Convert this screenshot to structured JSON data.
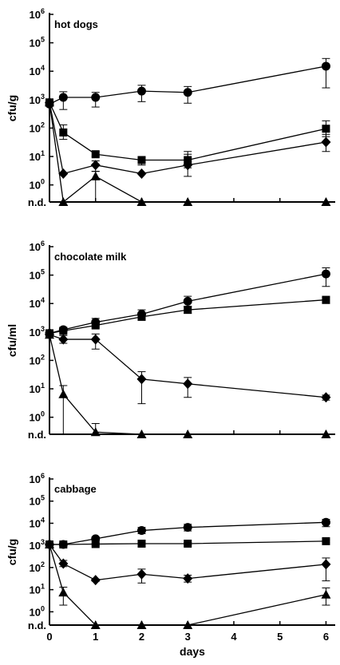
{
  "chart_data": [
    {
      "type": "scatter",
      "title": "hot dogs",
      "ylabel": "cfu/g",
      "yscale": "log",
      "ylim_exp": [
        -0.6,
        6
      ],
      "nd_label": "n.d.",
      "xlim": [
        0,
        6.2
      ],
      "series": [
        {
          "marker": "circle",
          "x": [
            0,
            0.3,
            1,
            2,
            3,
            6
          ],
          "y": [
            700,
            1200,
            1200,
            2000,
            1800,
            15000
          ],
          "err_lo": [
            600,
            450,
            550,
            850,
            750,
            2600
          ],
          "err_hi": [
            900,
            1900,
            1800,
            3200,
            2900,
            28000
          ]
        },
        {
          "marker": "square",
          "x": [
            0,
            0.3,
            1,
            2,
            3,
            6
          ],
          "y": [
            800,
            70,
            12,
            7.5,
            7.5,
            95
          ],
          "err_lo": [
            800,
            40,
            10,
            5,
            4,
            50
          ],
          "err_hi": [
            800,
            130,
            15,
            10,
            15,
            180
          ]
        },
        {
          "marker": "diamond",
          "x": [
            0,
            0.3,
            1,
            2,
            3,
            6
          ],
          "y": [
            800,
            2.5,
            5,
            2.5,
            5,
            32
          ],
          "err_lo": [
            800,
            2.5,
            3,
            2.5,
            2,
            15
          ],
          "err_hi": [
            800,
            2.5,
            7,
            2.5,
            12,
            60
          ]
        },
        {
          "marker": "triangle",
          "x": [
            0,
            0.3,
            1,
            2,
            3,
            6
          ],
          "y": [
            800,
            "n.d.",
            2,
            "n.d.",
            "n.d.",
            "n.d."
          ],
          "err_lo": [
            800,
            "n.d.",
            "n.d.",
            "n.d.",
            "n.d.",
            "n.d."
          ],
          "err_hi": [
            800,
            "n.d.",
            3,
            "n.d.",
            "n.d.",
            "n.d."
          ]
        }
      ]
    },
    {
      "type": "scatter",
      "title": "chocolate milk",
      "ylabel": "cfu/ml",
      "yscale": "log",
      "ylim_exp": [
        -0.6,
        6
      ],
      "nd_label": "n.d.",
      "xlim": [
        0,
        6.2
      ],
      "series": [
        {
          "marker": "circle",
          "x": [
            0,
            0.3,
            1,
            2,
            3,
            6
          ],
          "y": [
            900,
            1200,
            2200,
            4200,
            12000,
            110000
          ],
          "err_lo": [
            900,
            1000,
            1600,
            2800,
            8000,
            40000
          ],
          "err_hi": [
            900,
            1400,
            3000,
            6000,
            18000,
            180000
          ]
        },
        {
          "marker": "square",
          "x": [
            0,
            0.3,
            1,
            2,
            3,
            6
          ],
          "y": [
            900,
            1100,
            1700,
            3400,
            6000,
            13500
          ],
          "err_lo": [
            900,
            1000,
            1400,
            2600,
            4500,
            10000
          ],
          "err_hi": [
            900,
            1200,
            2000,
            4200,
            7500,
            17000
          ]
        },
        {
          "marker": "diamond",
          "x": [
            0,
            0.3,
            1,
            2,
            3,
            6
          ],
          "y": [
            800,
            550,
            550,
            22,
            15,
            5
          ],
          "err_lo": [
            800,
            400,
            250,
            3,
            5,
            4
          ],
          "err_hi": [
            800,
            750,
            850,
            40,
            25,
            6
          ]
        },
        {
          "marker": "triangle",
          "x": [
            0,
            0.3,
            1,
            2,
            3,
            6
          ],
          "y": [
            800,
            6.5,
            0.3,
            "n.d.",
            "n.d.",
            "n.d."
          ],
          "err_lo": [
            800,
            "n.d.",
            "n.d.",
            "n.d.",
            "n.d.",
            "n.d."
          ],
          "err_hi": [
            800,
            13,
            0.6,
            "n.d.",
            "n.d.",
            "n.d."
          ]
        }
      ]
    },
    {
      "type": "scatter",
      "title": "cabbage",
      "ylabel": "cfu/g",
      "xlabel": "days",
      "yscale": "log",
      "ylim_exp": [
        -0.6,
        6
      ],
      "nd_label": "n.d.",
      "xlim": [
        0,
        6.2
      ],
      "xticks": [
        0,
        1,
        2,
        3,
        4,
        5,
        6
      ],
      "series": [
        {
          "marker": "circle",
          "x": [
            0,
            0.3,
            1,
            2,
            3,
            6
          ],
          "y": [
            1100,
            1100,
            2000,
            4700,
            6500,
            11000
          ],
          "err_lo": [
            900,
            900,
            1700,
            3400,
            4500,
            7000
          ],
          "err_hi": [
            1300,
            1300,
            2400,
            6500,
            9000,
            15000
          ]
        },
        {
          "marker": "square",
          "x": [
            0,
            0.3,
            1,
            2,
            3,
            6
          ],
          "y": [
            1100,
            1100,
            1150,
            1200,
            1200,
            1550
          ],
          "err_lo": [
            900,
            1000,
            1000,
            1050,
            1050,
            1300
          ],
          "err_hi": [
            1300,
            1200,
            1300,
            1350,
            1350,
            1800
          ]
        },
        {
          "marker": "diamond",
          "x": [
            0,
            0.3,
            1,
            2,
            3,
            6
          ],
          "y": [
            1100,
            150,
            27,
            50,
            32,
            140
          ],
          "err_lo": [
            1100,
            110,
            24,
            20,
            22,
            25
          ],
          "err_hi": [
            1100,
            210,
            30,
            85,
            45,
            270
          ]
        },
        {
          "marker": "triangle",
          "x": [
            0,
            0.3,
            1,
            2,
            3,
            6
          ],
          "y": [
            1100,
            7.5,
            "n.d.",
            "n.d.",
            "n.d.",
            6
          ],
          "err_lo": [
            1100,
            2,
            "n.d.",
            "n.d.",
            "n.d.",
            2
          ],
          "err_hi": [
            1100,
            13,
            "n.d.",
            "n.d.",
            "n.d.",
            12
          ]
        }
      ]
    }
  ]
}
